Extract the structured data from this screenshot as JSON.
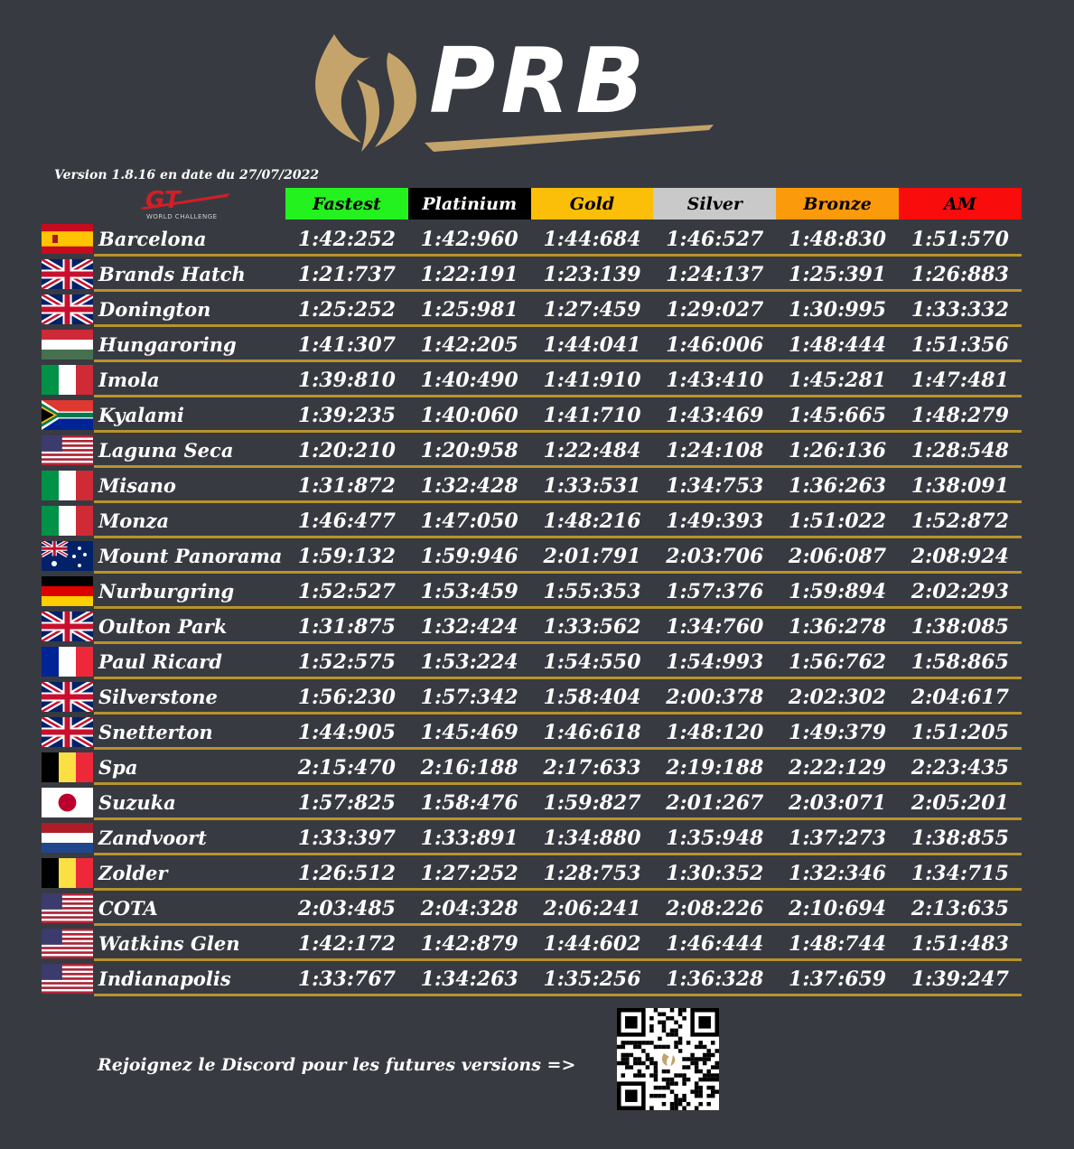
{
  "logo": {
    "text": "PRB",
    "gold": "#c4a46a"
  },
  "version_text": "Version 1.8.16 en date du 27/07/2022",
  "gt_logo": {
    "text": "GT",
    "caption": "WORLD CHALLENGE",
    "color": "#d11f26"
  },
  "headers": [
    {
      "label": "Fastest",
      "bg": "#23f21f",
      "fg": "#000000"
    },
    {
      "label": "Platinium",
      "bg": "#000000",
      "fg": "#ffffff"
    },
    {
      "label": "Gold",
      "bg": "#fbbf09",
      "fg": "#000000"
    },
    {
      "label": "Silver",
      "bg": "#c9c9c9",
      "fg": "#000000"
    },
    {
      "label": "Bronze",
      "bg": "#fb9a0a",
      "fg": "#000000"
    },
    {
      "label": "AM",
      "bg": "#f80c0c",
      "fg": "#000000"
    }
  ],
  "rows": [
    {
      "flag": "spain",
      "track": "Barcelona",
      "times": [
        "1:42:252",
        "1:42:960",
        "1:44:684",
        "1:46:527",
        "1:48:830",
        "1:51:570"
      ]
    },
    {
      "flag": "uk",
      "track": "Brands Hatch",
      "times": [
        "1:21:737",
        "1:22:191",
        "1:23:139",
        "1:24:137",
        "1:25:391",
        "1:26:883"
      ]
    },
    {
      "flag": "uk",
      "track": "Donington",
      "times": [
        "1:25:252",
        "1:25:981",
        "1:27:459",
        "1:29:027",
        "1:30:995",
        "1:33:332"
      ]
    },
    {
      "flag": "hungary",
      "track": "Hungaroring",
      "times": [
        "1:41:307",
        "1:42:205",
        "1:44:041",
        "1:46:006",
        "1:48:444",
        "1:51:356"
      ]
    },
    {
      "flag": "italy",
      "track": "Imola",
      "times": [
        "1:39:810",
        "1:40:490",
        "1:41:910",
        "1:43:410",
        "1:45:281",
        "1:47:481"
      ]
    },
    {
      "flag": "south-africa",
      "track": "Kyalami",
      "times": [
        "1:39:235",
        "1:40:060",
        "1:41:710",
        "1:43:469",
        "1:45:665",
        "1:48:279"
      ]
    },
    {
      "flag": "usa",
      "track": "Laguna Seca",
      "times": [
        "1:20:210",
        "1:20:958",
        "1:22:484",
        "1:24:108",
        "1:26:136",
        "1:28:548"
      ]
    },
    {
      "flag": "italy",
      "track": "Misano",
      "times": [
        "1:31:872",
        "1:32:428",
        "1:33:531",
        "1:34:753",
        "1:36:263",
        "1:38:091"
      ]
    },
    {
      "flag": "italy",
      "track": "Monza",
      "times": [
        "1:46:477",
        "1:47:050",
        "1:48:216",
        "1:49:393",
        "1:51:022",
        "1:52:872"
      ]
    },
    {
      "flag": "australia",
      "track": "Mount Panorama",
      "times": [
        "1:59:132",
        "1:59:946",
        "2:01:791",
        "2:03:706",
        "2:06:087",
        "2:08:924"
      ]
    },
    {
      "flag": "germany",
      "track": "Nurburgring",
      "times": [
        "1:52:527",
        "1:53:459",
        "1:55:353",
        "1:57:376",
        "1:59:894",
        "2:02:293"
      ]
    },
    {
      "flag": "uk",
      "track": "Oulton Park",
      "times": [
        "1:31:875",
        "1:32:424",
        "1:33:562",
        "1:34:760",
        "1:36:278",
        "1:38:085"
      ]
    },
    {
      "flag": "france",
      "track": "Paul Ricard",
      "times": [
        "1:52:575",
        "1:53:224",
        "1:54:550",
        "1:54:993",
        "1:56:762",
        "1:58:865"
      ]
    },
    {
      "flag": "uk",
      "track": "Silverstone",
      "times": [
        "1:56:230",
        "1:57:342",
        "1:58:404",
        "2:00:378",
        "2:02:302",
        "2:04:617"
      ]
    },
    {
      "flag": "uk",
      "track": "Snetterton",
      "times": [
        "1:44:905",
        "1:45:469",
        "1:46:618",
        "1:48:120",
        "1:49:379",
        "1:51:205"
      ]
    },
    {
      "flag": "belgium",
      "track": "Spa",
      "times": [
        "2:15:470",
        "2:16:188",
        "2:17:633",
        "2:19:188",
        "2:22:129",
        "2:23:435"
      ]
    },
    {
      "flag": "japan",
      "track": "Suzuka",
      "times": [
        "1:57:825",
        "1:58:476",
        "1:59:827",
        "2:01:267",
        "2:03:071",
        "2:05:201"
      ]
    },
    {
      "flag": "netherlands",
      "track": "Zandvoort",
      "times": [
        "1:33:397",
        "1:33:891",
        "1:34:880",
        "1:35:948",
        "1:37:273",
        "1:38:855"
      ]
    },
    {
      "flag": "belgium",
      "track": "Zolder",
      "times": [
        "1:26:512",
        "1:27:252",
        "1:28:753",
        "1:30:352",
        "1:32:346",
        "1:34:715"
      ]
    },
    {
      "flag": "usa",
      "track": "COTA",
      "times": [
        "2:03:485",
        "2:04:328",
        "2:06:241",
        "2:08:226",
        "2:10:694",
        "2:13:635"
      ]
    },
    {
      "flag": "usa",
      "track": "Watkins Glen",
      "times": [
        "1:42:172",
        "1:42:879",
        "1:44:602",
        "1:46:444",
        "1:48:744",
        "1:51:483"
      ]
    },
    {
      "flag": "usa",
      "track": "Indianapolis",
      "times": [
        "1:33:767",
        "1:34:263",
        "1:35:256",
        "1:36:328",
        "1:37:659",
        "1:39:247"
      ]
    }
  ],
  "footer": {
    "text": "Rejoignez le Discord pour les futures versions =>",
    "qr_icon": "qr-code-icon"
  }
}
